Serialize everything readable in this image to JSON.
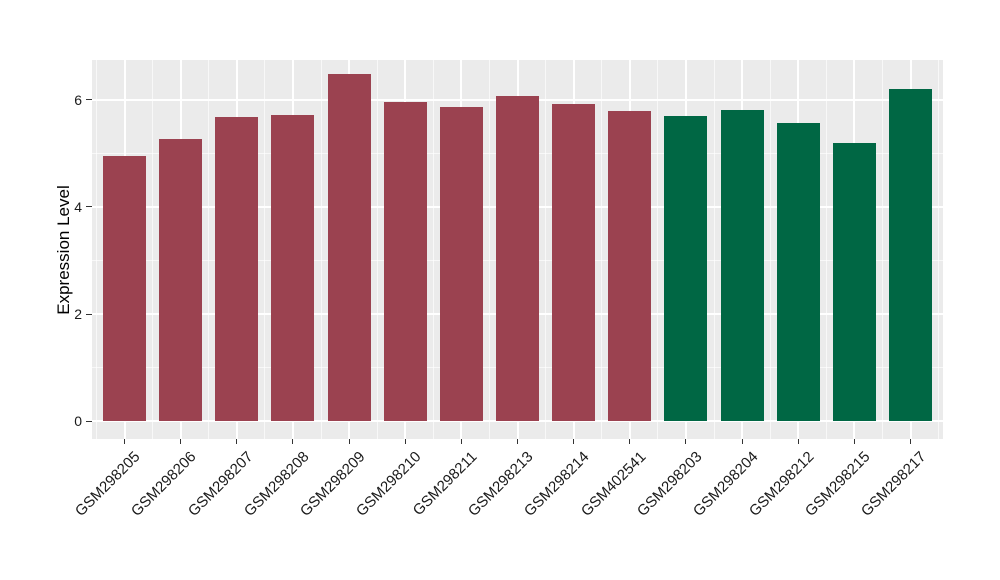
{
  "chart_data": {
    "type": "bar",
    "title": "",
    "xlabel": "",
    "ylabel": "Expression Level",
    "categories": [
      "GSM298205",
      "GSM298206",
      "GSM298207",
      "GSM298208",
      "GSM298209",
      "GSM298210",
      "GSM298211",
      "GSM298213",
      "GSM298214",
      "GSM402541",
      "GSM298203",
      "GSM298204",
      "GSM298212",
      "GSM298215",
      "GSM298217"
    ],
    "values": [
      4.94,
      5.27,
      5.67,
      5.71,
      6.48,
      5.96,
      5.87,
      6.07,
      5.92,
      5.78,
      5.7,
      5.8,
      5.57,
      5.2,
      6.19
    ],
    "bar_groups": [
      1,
      1,
      1,
      1,
      1,
      1,
      1,
      1,
      1,
      1,
      2,
      2,
      2,
      2,
      2
    ],
    "group_colors": {
      "1": "#9B4250",
      "2": "#006744"
    },
    "y_ticks": [
      0,
      2,
      4,
      6
    ],
    "y_tick_labels": [
      "0",
      "2",
      "4",
      "6"
    ],
    "y_minor_ticks": [
      1,
      3,
      5
    ],
    "ylim_display": [
      -0.33,
      6.74
    ],
    "grid": true,
    "legend": "none",
    "panel_bg": "#EBEBEB",
    "grid_color": "#FFFFFF",
    "tick_color": "#333333",
    "text_color": "#1a1a1a"
  }
}
